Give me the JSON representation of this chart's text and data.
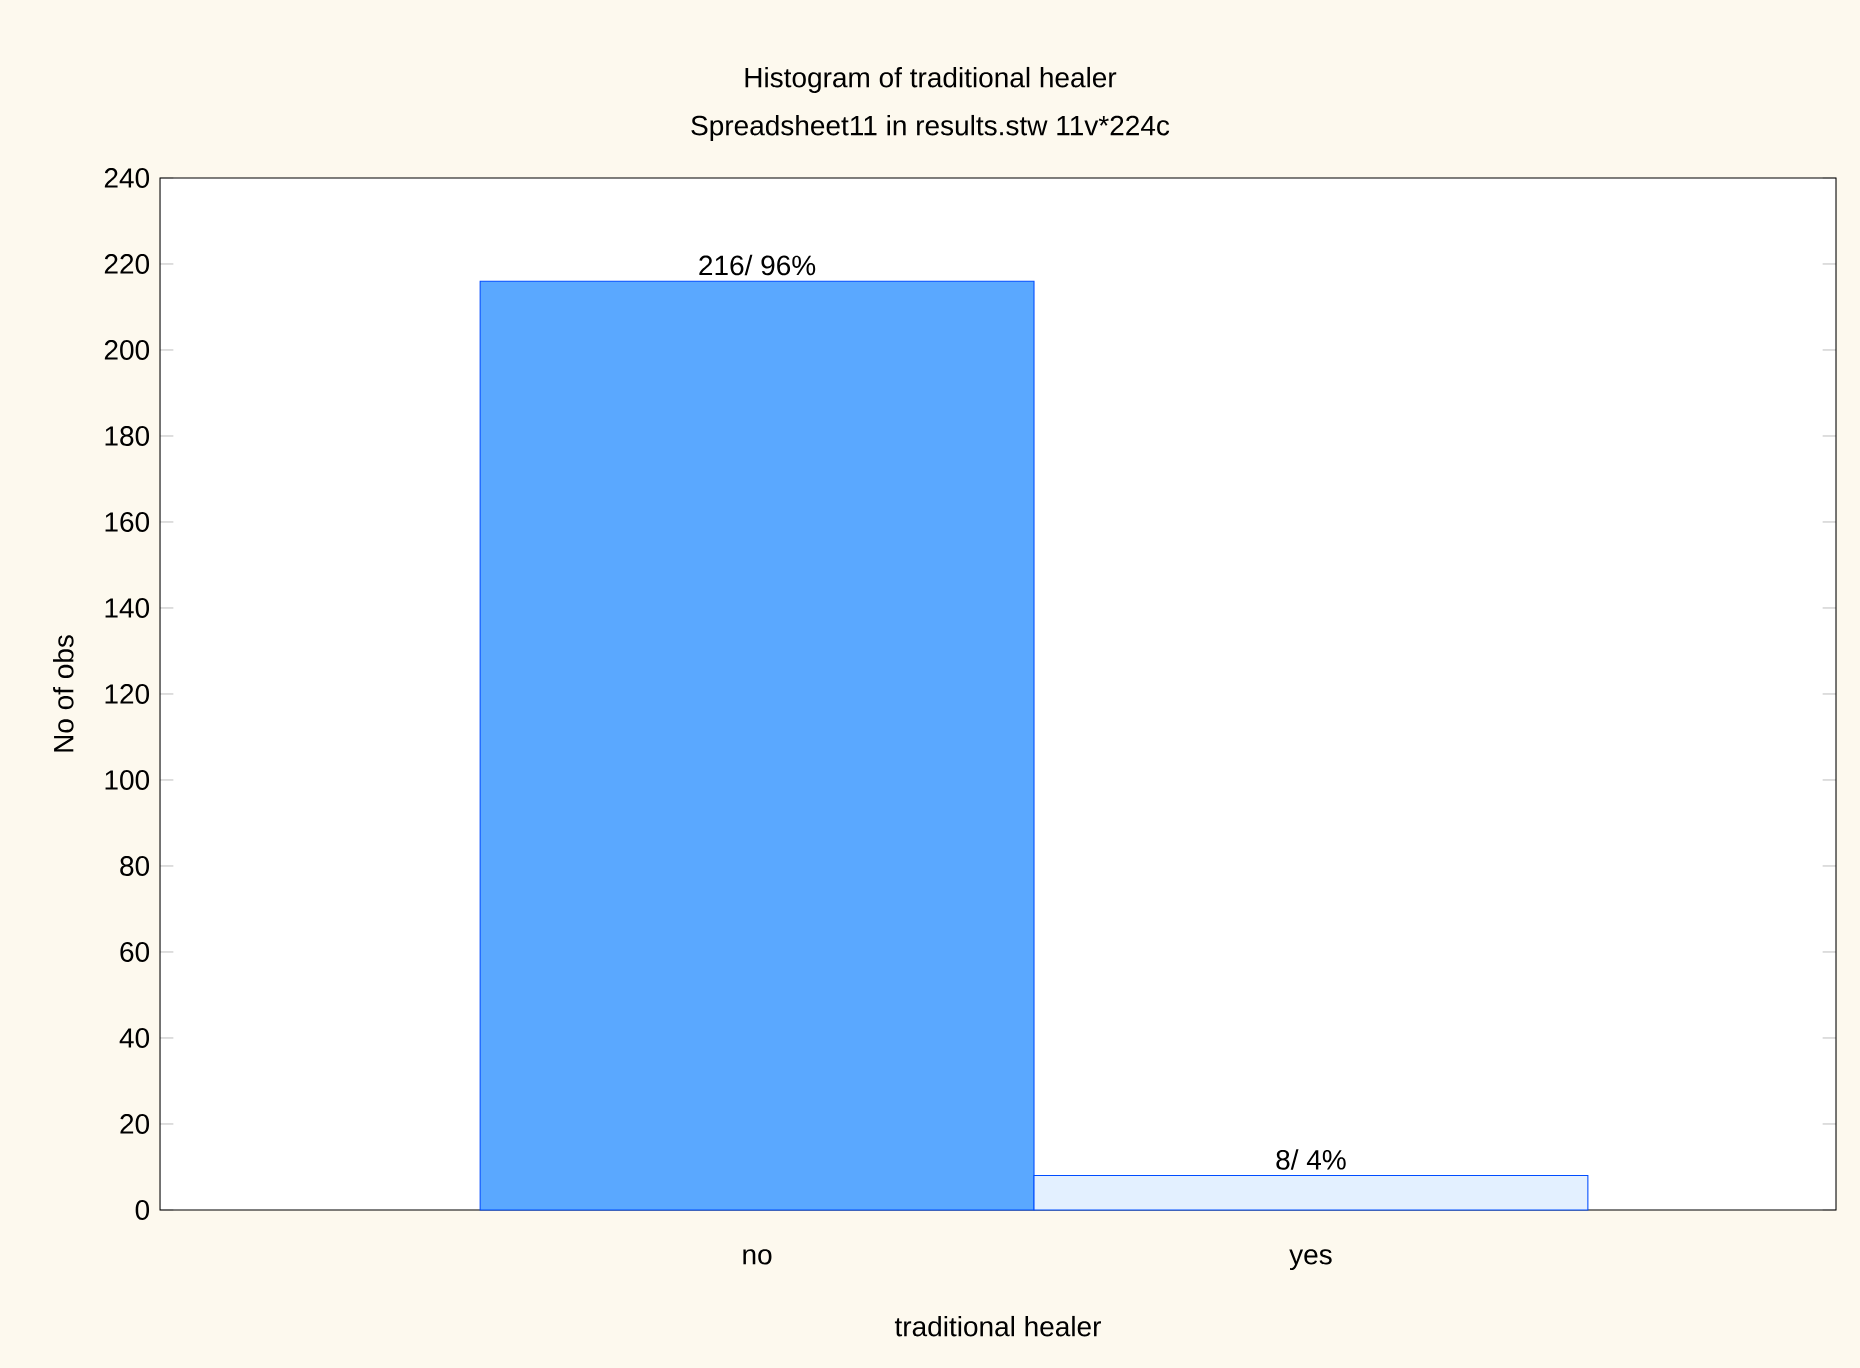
{
  "chart_data": {
    "type": "bar",
    "title": "Histogram of traditional healer",
    "subtitle": "Spreadsheet11 in results.stw 11v*224c",
    "xlabel": "traditional healer",
    "ylabel": "No of obs",
    "categories": [
      "no",
      "yes"
    ],
    "values": [
      216,
      8
    ],
    "colors": [
      "#5aa8ff",
      "#e3f0ff"
    ],
    "value_labels": [
      "216/ 96%",
      "8/ 4%"
    ],
    "ylim": [
      0,
      240
    ],
    "yticks": [
      0,
      20,
      40,
      60,
      80,
      100,
      120,
      140,
      160,
      180,
      200,
      220,
      240
    ],
    "grid": false
  }
}
